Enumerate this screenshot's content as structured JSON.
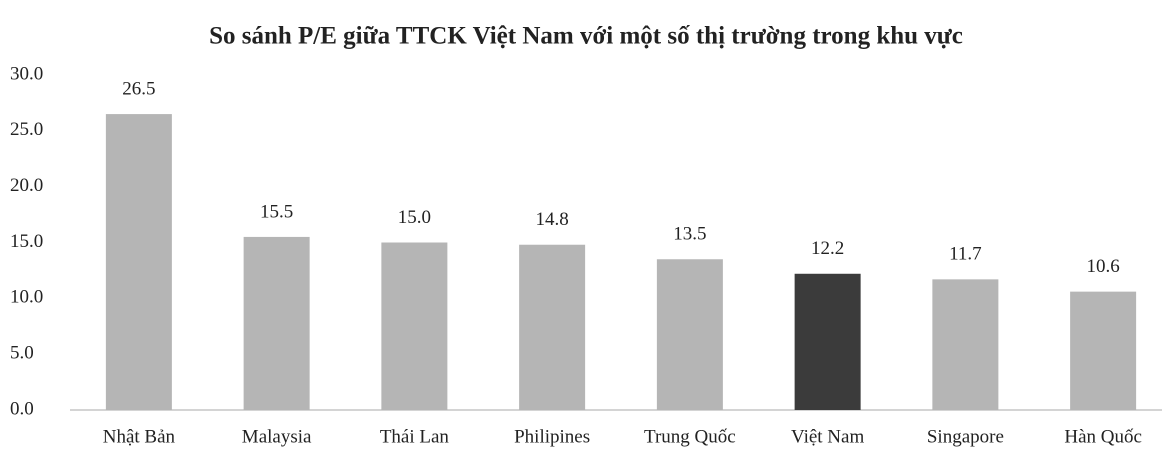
{
  "chart_data": {
    "type": "bar",
    "title": "So sánh P/E giữa TTCK Việt Nam với một số thị trường trong khu vực",
    "categories": [
      "Nhật Bản",
      "Malaysia",
      "Thái Lan",
      "Philipines",
      "Trung Quốc",
      "Việt Nam",
      "Singapore",
      "Hàn Quốc"
    ],
    "values": [
      26.5,
      15.5,
      15.0,
      14.8,
      13.5,
      12.2,
      11.7,
      10.6
    ],
    "value_labels": [
      "26.5",
      "15.5",
      "15.0",
      "14.8",
      "13.5",
      "12.2",
      "11.7",
      "10.6"
    ],
    "colors": [
      "#b5b5b5",
      "#b5b5b5",
      "#b5b5b5",
      "#b5b5b5",
      "#b5b5b5",
      "#3b3b3b",
      "#b5b5b5",
      "#b5b5b5"
    ],
    "ylim": [
      0,
      30
    ],
    "yticks": [
      {
        "value": 0,
        "label": "0.0"
      },
      {
        "value": 5,
        "label": "5.0"
      },
      {
        "value": 10,
        "label": "10.0"
      },
      {
        "value": 15,
        "label": "15.0"
      },
      {
        "value": 20,
        "label": "20.0"
      },
      {
        "value": 25,
        "label": "25.0"
      },
      {
        "value": 30,
        "label": "30.0"
      }
    ],
    "grid": false
  }
}
